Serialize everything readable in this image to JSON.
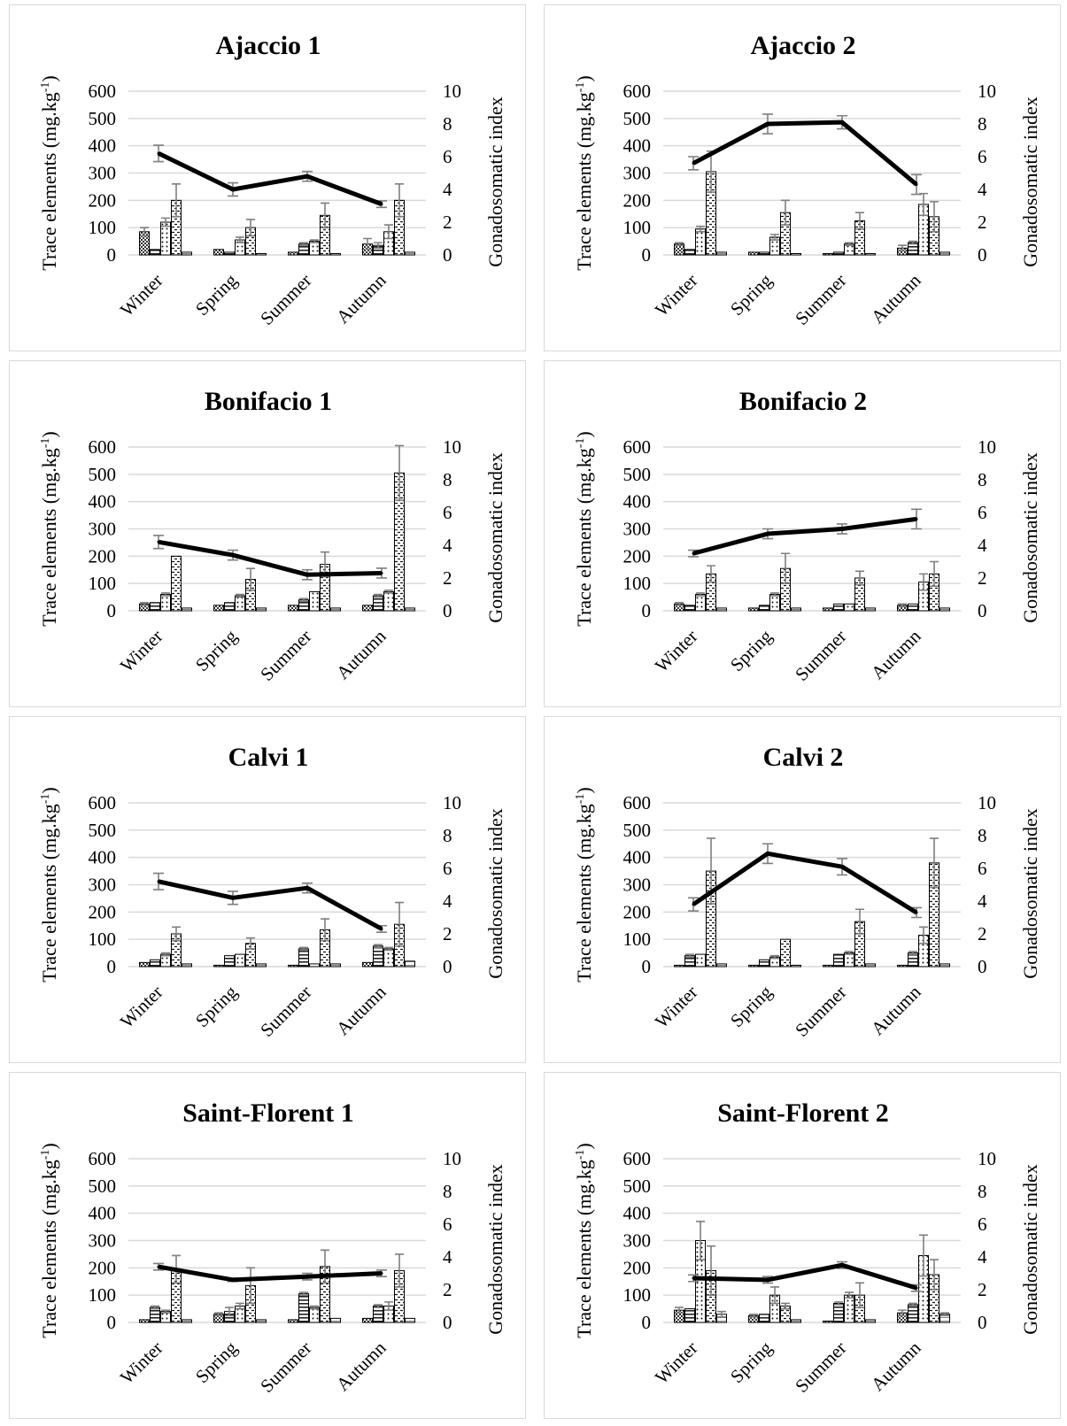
{
  "colors": {
    "grid": "#d9d9d9",
    "error_bar": "#7f7f7f",
    "line": "#000000"
  },
  "chart_data": [
    {
      "type": "bar",
      "title": "Ajaccio 1",
      "ylabel": "Trace elements (mg.kg-1)",
      "ylabel_sup": "-1",
      "y2label": "Gonadosomatic index",
      "ylim": [
        0,
        600
      ],
      "yticks": [
        "0",
        "100",
        "200",
        "300",
        "400",
        "500",
        "600"
      ],
      "y2lim": [
        0,
        10
      ],
      "y2ticks": [
        "0",
        "2",
        "4",
        "6",
        "8",
        "10"
      ],
      "categories": [
        "Winter",
        "Spring",
        "Summer",
        "Autumn"
      ],
      "bars": [
        [
          85,
          20,
          120,
          200,
          10
        ],
        [
          20,
          10,
          55,
          100,
          5
        ],
        [
          10,
          40,
          50,
          145,
          5
        ],
        [
          40,
          35,
          85,
          200,
          10
        ]
      ],
      "bar_err": [
        [
          15,
          0,
          15,
          60,
          0
        ],
        [
          0,
          0,
          10,
          30,
          0
        ],
        [
          0,
          5,
          5,
          45,
          0
        ],
        [
          20,
          10,
          25,
          60,
          0
        ]
      ],
      "line": {
        "values": [
          6.2,
          4.0,
          4.8,
          3.1
        ],
        "errors": [
          0.5,
          0.4,
          0.3,
          0.2
        ]
      }
    },
    {
      "type": "bar",
      "title": "Ajaccio 2",
      "ylabel": "Trace elements (mg.kg-1)",
      "ylabel_sup": "-1",
      "y2label": "Gonadosomatic index",
      "ylim": [
        0,
        600
      ],
      "yticks": [
        "0",
        "100",
        "200",
        "300",
        "400",
        "500",
        "600"
      ],
      "y2lim": [
        0,
        10
      ],
      "y2ticks": [
        "0",
        "2",
        "4",
        "6",
        "8",
        "10"
      ],
      "categories": [
        "Winter",
        "Spring",
        "Summer",
        "Autumn"
      ],
      "bars": [
        [
          40,
          20,
          95,
          305,
          10
        ],
        [
          10,
          10,
          65,
          155,
          5
        ],
        [
          5,
          10,
          40,
          125,
          5
        ],
        [
          25,
          45,
          185,
          140,
          10
        ]
      ],
      "bar_err": [
        [
          5,
          0,
          10,
          75,
          0
        ],
        [
          0,
          0,
          10,
          45,
          0
        ],
        [
          0,
          0,
          5,
          30,
          0
        ],
        [
          10,
          5,
          40,
          55,
          0
        ]
      ],
      "line": {
        "values": [
          5.6,
          8.0,
          8.1,
          4.3
        ],
        "errors": [
          0.4,
          0.6,
          0.4,
          0.6
        ]
      }
    },
    {
      "type": "bar",
      "title": "Bonifacio 1",
      "ylabel": "Trace elements (mg.kg-1)",
      "ylabel_sup": "-1",
      "y2label": "Gonadosomatic index",
      "ylim": [
        0,
        600
      ],
      "yticks": [
        "0",
        "100",
        "200",
        "300",
        "400",
        "500",
        "600"
      ],
      "y2lim": [
        0,
        10
      ],
      "y2ticks": [
        "0",
        "2",
        "4",
        "6",
        "8",
        "10"
      ],
      "categories": [
        "Winter",
        "Spring",
        "Summer",
        "Autumn"
      ],
      "bars": [
        [
          25,
          30,
          60,
          200,
          10
        ],
        [
          20,
          30,
          55,
          115,
          10
        ],
        [
          20,
          40,
          70,
          170,
          10
        ],
        [
          20,
          55,
          70,
          505,
          10
        ]
      ],
      "bar_err": [
        [
          5,
          0,
          5,
          0,
          0
        ],
        [
          0,
          0,
          5,
          40,
          0
        ],
        [
          0,
          5,
          0,
          45,
          0
        ],
        [
          0,
          5,
          5,
          100,
          0
        ]
      ],
      "line": {
        "values": [
          4.2,
          3.4,
          2.2,
          2.3
        ],
        "errors": [
          0.4,
          0.3,
          0.3,
          0.3
        ]
      }
    },
    {
      "type": "bar",
      "title": "Bonifacio 2",
      "ylabel": "Trace elements (mg.kg-1)",
      "ylabel_sup": "-1",
      "y2label": "Gonadosomatic index",
      "ylim": [
        0,
        600
      ],
      "yticks": [
        "0",
        "100",
        "200",
        "300",
        "400",
        "500",
        "600"
      ],
      "y2lim": [
        0,
        10
      ],
      "y2ticks": [
        "0",
        "2",
        "4",
        "6",
        "8",
        "10"
      ],
      "categories": [
        "Winter",
        "Spring",
        "Summer",
        "Autumn"
      ],
      "bars": [
        [
          25,
          20,
          60,
          135,
          10
        ],
        [
          10,
          20,
          60,
          155,
          10
        ],
        [
          10,
          25,
          25,
          120,
          10
        ],
        [
          20,
          25,
          105,
          135,
          10
        ]
      ],
      "bar_err": [
        [
          5,
          0,
          5,
          30,
          0
        ],
        [
          0,
          0,
          5,
          55,
          0
        ],
        [
          0,
          0,
          0,
          25,
          0
        ],
        [
          5,
          0,
          30,
          45,
          0
        ]
      ],
      "line": {
        "values": [
          3.5,
          4.7,
          5.0,
          5.6
        ],
        "errors": [
          0.2,
          0.3,
          0.3,
          0.6
        ]
      }
    },
    {
      "type": "bar",
      "title": "Calvi 1",
      "ylabel": "Trace elements (mg.kg-1)",
      "ylabel_sup": "-1",
      "y2label": "Gonadosomatic index",
      "ylim": [
        0,
        600
      ],
      "yticks": [
        "0",
        "100",
        "200",
        "300",
        "400",
        "500",
        "600"
      ],
      "y2lim": [
        0,
        10
      ],
      "y2ticks": [
        "0",
        "2",
        "4",
        "6",
        "8",
        "10"
      ],
      "categories": [
        "Winter",
        "Spring",
        "Summer",
        "Autumn"
      ],
      "bars": [
        [
          15,
          25,
          45,
          120,
          10
        ],
        [
          5,
          40,
          45,
          85,
          10
        ],
        [
          5,
          65,
          10,
          135,
          10
        ],
        [
          15,
          75,
          65,
          155,
          20
        ]
      ],
      "bar_err": [
        [
          0,
          0,
          5,
          25,
          0
        ],
        [
          0,
          0,
          0,
          20,
          0
        ],
        [
          0,
          5,
          0,
          40,
          0
        ],
        [
          0,
          5,
          5,
          80,
          0
        ]
      ],
      "line": {
        "values": [
          5.2,
          4.2,
          4.8,
          2.3
        ],
        "errors": [
          0.5,
          0.4,
          0.3,
          0.2
        ]
      }
    },
    {
      "type": "bar",
      "title": "Calvi 2",
      "ylabel": "Trace elements (mg.kg-1)",
      "ylabel_sup": "-1",
      "y2label": "Gonadosomatic index",
      "ylim": [
        0,
        600
      ],
      "yticks": [
        "0",
        "100",
        "200",
        "300",
        "400",
        "500",
        "600"
      ],
      "y2lim": [
        0,
        10
      ],
      "y2ticks": [
        "0",
        "2",
        "4",
        "6",
        "8",
        "10"
      ],
      "categories": [
        "Winter",
        "Spring",
        "Summer",
        "Autumn"
      ],
      "bars": [
        [
          5,
          40,
          45,
          350,
          10
        ],
        [
          5,
          25,
          35,
          100,
          5
        ],
        [
          5,
          45,
          50,
          165,
          10
        ],
        [
          5,
          50,
          115,
          380,
          10
        ]
      ],
      "bar_err": [
        [
          0,
          5,
          0,
          120,
          0
        ],
        [
          0,
          0,
          5,
          0,
          0
        ],
        [
          0,
          0,
          5,
          45,
          0
        ],
        [
          0,
          5,
          30,
          90,
          0
        ]
      ],
      "line": {
        "values": [
          3.8,
          6.9,
          6.1,
          3.3
        ],
        "errors": [
          0.4,
          0.6,
          0.5,
          0.3
        ]
      }
    },
    {
      "type": "bar",
      "title": "Saint-Florent 1",
      "ylabel": "Trace elements (mg.kg-1)",
      "ylabel_sup": "-1",
      "y2label": "Gonadosomatic index",
      "ylim": [
        0,
        600
      ],
      "yticks": [
        "0",
        "100",
        "200",
        "300",
        "400",
        "500",
        "600"
      ],
      "y2lim": [
        0,
        10
      ],
      "y2ticks": [
        "0",
        "2",
        "4",
        "6",
        "8",
        "10"
      ],
      "categories": [
        "Winter",
        "Spring",
        "Summer",
        "Autumn"
      ],
      "bars": [
        [
          10,
          55,
          40,
          195,
          10
        ],
        [
          30,
          40,
          60,
          135,
          10
        ],
        [
          10,
          105,
          55,
          205,
          15
        ],
        [
          15,
          60,
          60,
          190,
          15
        ]
      ],
      "bar_err": [
        [
          0,
          5,
          5,
          50,
          0
        ],
        [
          5,
          15,
          10,
          65,
          0
        ],
        [
          0,
          5,
          5,
          60,
          0
        ],
        [
          0,
          5,
          15,
          60,
          0
        ]
      ],
      "line": {
        "values": [
          3.4,
          2.6,
          2.8,
          3.0
        ],
        "errors": [
          0.2,
          0.1,
          0.2,
          0.2
        ]
      }
    },
    {
      "type": "bar",
      "title": "Saint-Florent 2",
      "ylabel": "Trace elements (mg.kg-1)",
      "ylabel_sup": "-1",
      "y2label": "Gonadosomatic index",
      "ylim": [
        0,
        600
      ],
      "yticks": [
        "0",
        "100",
        "200",
        "300",
        "400",
        "500",
        "600"
      ],
      "y2lim": [
        0,
        10
      ],
      "y2ticks": [
        "0",
        "2",
        "4",
        "6",
        "8",
        "10"
      ],
      "categories": [
        "Winter",
        "Spring",
        "Summer",
        "Autumn"
      ],
      "bars": [
        [
          45,
          50,
          300,
          190,
          30
        ],
        [
          25,
          30,
          100,
          60,
          10
        ],
        [
          5,
          70,
          100,
          100,
          10
        ],
        [
          35,
          65,
          245,
          175,
          30
        ]
      ],
      "bar_err": [
        [
          10,
          0,
          70,
          90,
          10
        ],
        [
          5,
          0,
          30,
          10,
          0
        ],
        [
          0,
          5,
          10,
          45,
          0
        ],
        [
          10,
          5,
          75,
          55,
          5
        ]
      ],
      "line": {
        "values": [
          2.7,
          2.6,
          3.5,
          2.1
        ],
        "errors": [
          0.2,
          0.2,
          0.2,
          0.2
        ]
      }
    }
  ]
}
